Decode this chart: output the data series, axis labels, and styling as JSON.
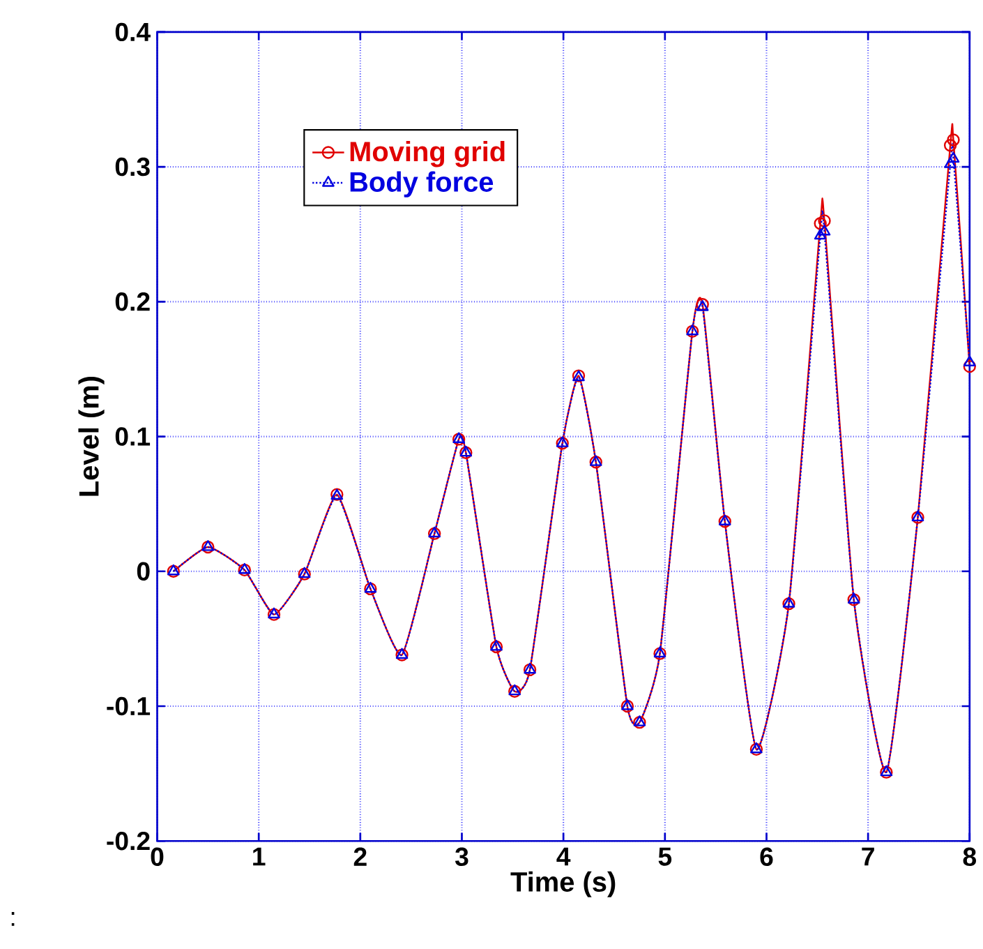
{
  "chart_data": {
    "type": "line",
    "xlabel": "Time (s)",
    "ylabel": "Level (m)",
    "x": [
      0.16,
      0.5,
      0.86,
      1.15,
      1.45,
      1.77,
      2.1,
      2.41,
      2.73,
      2.97,
      3.04,
      3.34,
      3.52,
      3.67,
      3.99,
      4.15,
      4.32,
      4.63,
      4.75,
      4.95,
      5.27,
      5.37,
      5.59,
      5.9,
      6.22,
      6.53,
      6.57,
      6.86,
      7.18,
      7.49,
      7.81,
      7.84,
      8.0
    ],
    "series": [
      {
        "name": "Moving grid",
        "color": "#e00000",
        "marker": "circle",
        "line_style": "solid",
        "values": [
          0,
          0.018,
          0.001,
          -0.032,
          -0.002,
          0.057,
          -0.013,
          -0.062,
          0.028,
          0.098,
          0.088,
          -0.056,
          -0.089,
          -0.073,
          0.095,
          0.145,
          0.081,
          -0.1,
          -0.112,
          -0.061,
          0.178,
          0.198,
          0.037,
          -0.132,
          -0.024,
          0.258,
          0.26,
          -0.021,
          -0.149,
          0.04,
          0.316,
          0.32,
          0.152
        ]
      },
      {
        "name": "Body force",
        "color": "#0000e0",
        "marker": "triangle",
        "line_style": "dotted",
        "values": [
          0,
          0.018,
          0.001,
          -0.032,
          -0.002,
          0.056,
          -0.013,
          -0.062,
          0.028,
          0.098,
          0.088,
          -0.056,
          -0.089,
          -0.073,
          0.095,
          0.144,
          0.081,
          -0.1,
          -0.112,
          -0.061,
          0.178,
          0.196,
          0.037,
          -0.132,
          -0.024,
          0.249,
          0.252,
          -0.021,
          -0.149,
          0.04,
          0.302,
          0.306,
          0.155
        ]
      }
    ],
    "xlim": [
      0,
      8
    ],
    "ylim": [
      -0.2,
      0.4
    ],
    "xticks": [
      0,
      1,
      2,
      3,
      4,
      5,
      6,
      7,
      8
    ],
    "yticks": [
      -0.2,
      -0.1,
      0,
      0.1,
      0.2,
      0.3,
      0.4
    ],
    "grid": true,
    "legend": "top left",
    "annotations": [
      ":"
    ]
  }
}
